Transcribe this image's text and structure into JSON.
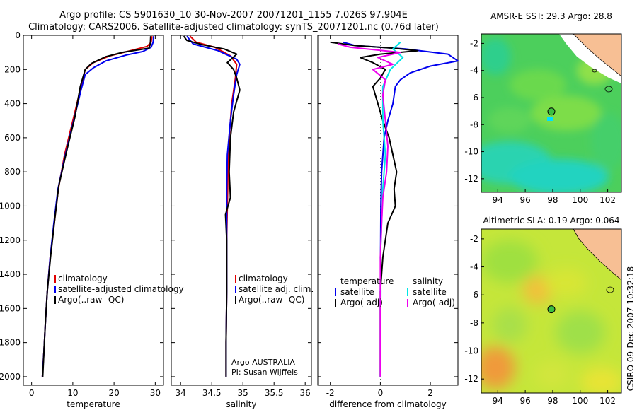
{
  "title_line1": "Argo profile: CS 5901630_10 30-Nov-2007 20071201_1155 7.026S 97.904E",
  "title_line2": "Climatology: CARS2006. Satellite-adjusted climatology: synTS_20071201.nc (0.76d later)",
  "side_label": "CSIRO 09-Dec-2007 10:32:18",
  "colors": {
    "red": "#e00000",
    "blue": "#0000ee",
    "black": "#000000",
    "cyan": "#00e5e5",
    "magenta": "#ee00ee"
  },
  "chart_data": [
    {
      "type": "line",
      "xlabel": "temperature",
      "xlim": [
        -2,
        32
      ],
      "ylim": [
        2050,
        0
      ],
      "xticks": [
        0,
        10,
        20,
        30
      ],
      "yticks": [
        0,
        200,
        400,
        600,
        800,
        1000,
        1200,
        1400,
        1600,
        1800,
        2000
      ],
      "legend": [
        {
          "label": "climatology",
          "color": "#e00000"
        },
        {
          "label": "satellite-adjusted climatology",
          "color": "#0000ee"
        },
        {
          "label": "Argo(..raw -QC)",
          "color": "#000000"
        }
      ],
      "series": [
        {
          "color": "#e00000",
          "points": [
            [
              29.2,
              5
            ],
            [
              29.0,
              40
            ],
            [
              28.0,
              65
            ],
            [
              24.0,
              90
            ],
            [
              19.0,
              120
            ],
            [
              15.0,
              160
            ],
            [
              13.0,
              200
            ],
            [
              12.0,
              300
            ],
            [
              10.0,
              500
            ],
            [
              8.0,
              700
            ],
            [
              6.5,
              900
            ],
            [
              5.5,
              1100
            ],
            [
              4.5,
              1300
            ],
            [
              3.8,
              1500
            ],
            [
              3.3,
              1700
            ],
            [
              3.0,
              1850
            ],
            [
              2.6,
              2000
            ]
          ]
        },
        {
          "color": "#0000ee",
          "points": [
            [
              29.6,
              5
            ],
            [
              29.5,
              40
            ],
            [
              29.0,
              70
            ],
            [
              27.0,
              95
            ],
            [
              23.0,
              115
            ],
            [
              18.0,
              150
            ],
            [
              15.0,
              190
            ],
            [
              13.0,
              230
            ],
            [
              12.0,
              320
            ],
            [
              10.0,
              520
            ],
            [
              8.0,
              720
            ],
            [
              6.4,
              900
            ],
            [
              5.4,
              1100
            ],
            [
              4.5,
              1300
            ],
            [
              3.8,
              1500
            ],
            [
              3.3,
              1700
            ],
            [
              3.0,
              1850
            ],
            [
              2.6,
              2000
            ]
          ]
        },
        {
          "color": "#000000",
          "points": [
            [
              28.9,
              5
            ],
            [
              28.8,
              50
            ],
            [
              28.5,
              75
            ],
            [
              22.0,
              100
            ],
            [
              18.0,
              125
            ],
            [
              14.5,
              165
            ],
            [
              13.0,
              200
            ],
            [
              11.8,
              300
            ],
            [
              10.5,
              480
            ],
            [
              8.5,
              680
            ],
            [
              6.6,
              880
            ],
            [
              5.6,
              1080
            ],
            [
              4.6,
              1300
            ],
            [
              3.8,
              1500
            ],
            [
              3.3,
              1700
            ],
            [
              3.0,
              1850
            ],
            [
              2.7,
              2000
            ]
          ]
        }
      ]
    },
    {
      "type": "line",
      "xlabel": "salinity",
      "xlim": [
        33.85,
        36.1
      ],
      "ylim": [
        2050,
        0
      ],
      "xticks": [
        34,
        34.5,
        35,
        35.5,
        36
      ],
      "legend": [
        {
          "label": "climatology",
          "color": "#e00000"
        },
        {
          "label": "satellite adj. clim.",
          "color": "#0000ee"
        },
        {
          "label": "Argo(..raw -QC)",
          "color": "#000000"
        }
      ],
      "annotations": [
        "Argo AUSTRALIA",
        "PI: Susan Wijffels"
      ],
      "series": [
        {
          "color": "#e00000",
          "points": [
            [
              34.15,
              5
            ],
            [
              34.25,
              40
            ],
            [
              34.55,
              70
            ],
            [
              34.8,
              120
            ],
            [
              34.9,
              170
            ],
            [
              34.88,
              250
            ],
            [
              34.82,
              400
            ],
            [
              34.78,
              600
            ],
            [
              34.76,
              800
            ],
            [
              34.75,
              1000
            ],
            [
              34.74,
              1200
            ],
            [
              34.74,
              1500
            ],
            [
              34.73,
              1800
            ],
            [
              34.73,
              2000
            ]
          ]
        },
        {
          "color": "#0000ee",
          "points": [
            [
              34.1,
              5
            ],
            [
              34.2,
              50
            ],
            [
              34.6,
              90
            ],
            [
              34.9,
              140
            ],
            [
              34.95,
              170
            ],
            [
              34.9,
              230
            ],
            [
              34.85,
              350
            ],
            [
              34.8,
              500
            ],
            [
              34.75,
              700
            ],
            [
              34.74,
              900
            ],
            [
              34.74,
              1200
            ],
            [
              34.74,
              1500
            ],
            [
              34.73,
              1800
            ],
            [
              34.73,
              2000
            ]
          ]
        },
        {
          "color": "#000000",
          "points": [
            [
              34.05,
              5
            ],
            [
              34.1,
              30
            ],
            [
              34.35,
              55
            ],
            [
              34.7,
              80
            ],
            [
              34.9,
              110
            ],
            [
              34.75,
              160
            ],
            [
              34.85,
              200
            ],
            [
              34.9,
              250
            ],
            [
              34.95,
              320
            ],
            [
              34.85,
              450
            ],
            [
              34.8,
              600
            ],
            [
              34.78,
              800
            ],
            [
              34.8,
              950
            ],
            [
              34.72,
              1050
            ],
            [
              34.74,
              1200
            ],
            [
              34.74,
              1500
            ],
            [
              34.73,
              1800
            ],
            [
              34.73,
              2000
            ]
          ]
        }
      ]
    },
    {
      "type": "line",
      "xlabel": "difference from climatology",
      "xlim": [
        -2.5,
        3.1
      ],
      "ylim": [
        2050,
        0
      ],
      "xticks": [
        -2,
        0,
        2
      ],
      "legend": [
        {
          "label": "temperature",
          "color": null
        },
        {
          "label": "salinity",
          "color": null
        },
        {
          "label": "satellite",
          "color": "#0000ee"
        },
        {
          "label": "satellite",
          "color": "#00e5e5"
        },
        {
          "label": "Argo(-adj)",
          "color": "#000000"
        },
        {
          "label": "Argo(-adj)",
          "color": "#ee00ee"
        }
      ],
      "series": [
        {
          "color": "#0000ee",
          "points": [
            [
              -1.5,
              40
            ],
            [
              -1.0,
              60
            ],
            [
              1.0,
              80
            ],
            [
              2.7,
              110
            ],
            [
              3.1,
              150
            ],
            [
              2.0,
              180
            ],
            [
              1.2,
              220
            ],
            [
              0.8,
              260
            ],
            [
              0.6,
              300
            ],
            [
              0.5,
              400
            ],
            [
              0.3,
              500
            ],
            [
              0.15,
              600
            ],
            [
              0.05,
              800
            ],
            [
              0.02,
              1000
            ],
            [
              0.0,
              1500
            ],
            [
              0.0,
              2000
            ]
          ]
        },
        {
          "color": "#000000",
          "points": [
            [
              -2.0,
              40
            ],
            [
              -1.0,
              60
            ],
            [
              0.5,
              75
            ],
            [
              1.5,
              90
            ],
            [
              0.0,
              110
            ],
            [
              -0.8,
              130
            ],
            [
              -0.3,
              160
            ],
            [
              0.2,
              200
            ],
            [
              0.0,
              250
            ],
            [
              -0.3,
              300
            ],
            [
              -0.1,
              400
            ],
            [
              0.1,
              500
            ],
            [
              0.35,
              600
            ],
            [
              0.5,
              700
            ],
            [
              0.65,
              800
            ],
            [
              0.55,
              900
            ],
            [
              0.6,
              1000
            ],
            [
              0.3,
              1100
            ],
            [
              0.1,
              1300
            ],
            [
              0.0,
              1500
            ],
            [
              0.0,
              2000
            ]
          ]
        },
        {
          "color": "#00e5e5",
          "points": [
            [
              0.8,
              40
            ],
            [
              0.5,
              80
            ],
            [
              0.9,
              130
            ],
            [
              0.4,
              200
            ],
            [
              0.1,
              300
            ],
            [
              0.1,
              500
            ],
            [
              0.2,
              700
            ],
            [
              0.1,
              900
            ],
            [
              0.05,
              1100
            ],
            [
              0.0,
              1300
            ],
            [
              0.02,
              1500
            ],
            [
              0.0,
              2000
            ]
          ]
        },
        {
          "color": "#ee00ee",
          "points": [
            [
              -1.7,
              50
            ],
            [
              -1.2,
              70
            ],
            [
              0.8,
              100
            ],
            [
              -0.1,
              130
            ],
            [
              0.5,
              170
            ],
            [
              -0.3,
              200
            ],
            [
              0.2,
              260
            ],
            [
              0.1,
              350
            ],
            [
              0.2,
              500
            ],
            [
              0.3,
              650
            ],
            [
              0.25,
              800
            ],
            [
              0.1,
              950
            ],
            [
              0.05,
              1100
            ],
            [
              0.0,
              1300
            ],
            [
              0.0,
              2000
            ]
          ]
        }
      ]
    },
    {
      "type": "heatmap",
      "title": "AMSR-E SST: 29.3 Argo: 28.8",
      "xlim": [
        92.8,
        103
      ],
      "ylim": [
        -13,
        -1.3
      ],
      "xticks": [
        94,
        96,
        98,
        100,
        102
      ],
      "yticks": [
        -2,
        -4,
        -6,
        -8,
        -10,
        -12
      ],
      "marker": {
        "lon": 97.9,
        "lat": -7.03
      }
    },
    {
      "type": "heatmap",
      "title": "Altimetric SLA: 0.19 Argo: 0.064",
      "xlim": [
        92.8,
        103
      ],
      "ylim": [
        -13,
        -1.3
      ],
      "xticks": [
        94,
        96,
        98,
        100,
        102
      ],
      "yticks": [
        -2,
        -4,
        -6,
        -8,
        -10,
        -12
      ],
      "marker": {
        "lon": 97.9,
        "lat": -7.03
      }
    }
  ]
}
